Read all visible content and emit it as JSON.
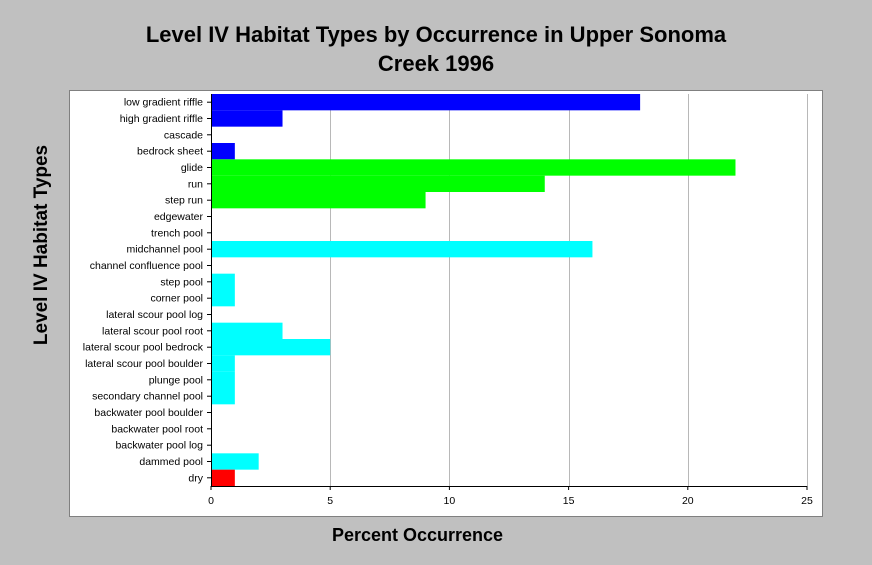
{
  "chart_data": {
    "type": "bar",
    "orientation": "horizontal",
    "title_lines": [
      "Level IV Habitat Types by Occurrence in Upper Sonoma",
      "Creek 1996"
    ],
    "xlabel": "Percent Occurrence",
    "ylabel": "Level IV Habitat Types",
    "xlim": [
      0,
      25
    ],
    "xticks": [
      0,
      5,
      10,
      15,
      20,
      25
    ],
    "grid": "vertical",
    "legend": "none",
    "categories": [
      "low gradient riffle",
      "high gradient riffle",
      "cascade",
      "bedrock sheet",
      "glide",
      "run",
      "step run",
      "edgewater",
      "trench pool",
      "midchannel pool",
      "channel confluence pool",
      "step pool",
      "corner pool",
      "lateral scour pool log",
      "lateral scour pool root",
      "lateral scour pool bedrock",
      "lateral scour pool boulder",
      "plunge pool",
      "secondary channel pool",
      "backwater pool boulder",
      "backwater pool root",
      "backwater pool log",
      "dammed pool",
      "dry"
    ],
    "values": [
      18,
      3,
      0,
      1,
      22,
      14,
      9,
      0,
      0,
      16,
      0,
      1,
      1,
      0,
      3,
      5,
      1,
      1,
      1,
      0,
      0,
      0,
      2,
      1
    ],
    "colors": [
      "#0000ff",
      "#0000ff",
      "#0000ff",
      "#0000ff",
      "#00ff00",
      "#00ff00",
      "#00ff00",
      "#00ff00",
      "#00ffff",
      "#00ffff",
      "#00ffff",
      "#00ffff",
      "#00ffff",
      "#00ffff",
      "#00ffff",
      "#00ffff",
      "#00ffff",
      "#00ffff",
      "#00ffff",
      "#00ffff",
      "#00ffff",
      "#00ffff",
      "#00ffff",
      "#ff0000"
    ]
  }
}
